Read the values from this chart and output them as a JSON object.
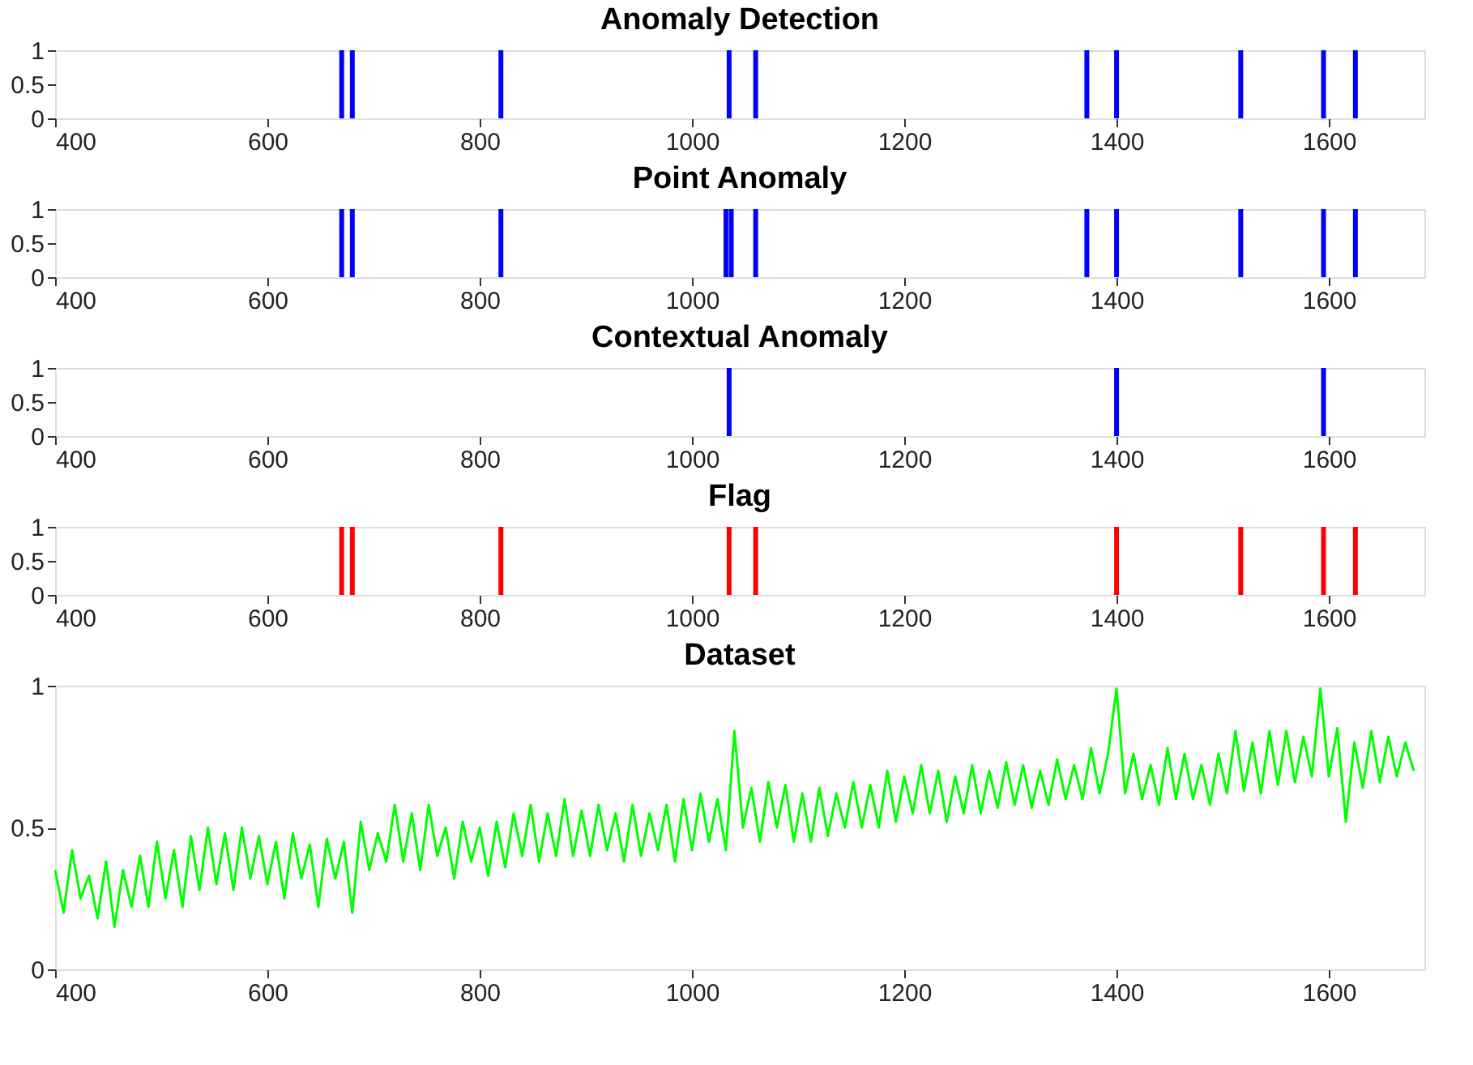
{
  "chart_data": [
    {
      "type": "bar",
      "title": "Anomaly Detection",
      "x": [
        670,
        680,
        820,
        1035,
        1060,
        1372,
        1400,
        1517,
        1595,
        1625
      ],
      "series": [
        {
          "color": "#0000ff",
          "values": [
            1,
            1,
            1,
            1,
            1,
            1,
            1,
            1,
            1,
            1
          ]
        }
      ],
      "xlim": [
        400,
        1690
      ],
      "xticks": [
        400,
        600,
        800,
        1000,
        1200,
        1400,
        1600
      ],
      "ylim": [
        0,
        1
      ],
      "yticks": [
        0,
        0.5,
        1
      ]
    },
    {
      "type": "bar",
      "title": "Point Anomaly",
      "x": [
        670,
        680,
        820,
        1032,
        1037,
        1060,
        1372,
        1400,
        1517,
        1595,
        1625
      ],
      "series": [
        {
          "color": "#0000ff",
          "values": [
            1,
            1,
            1,
            1,
            1,
            1,
            1,
            1,
            1,
            1,
            1
          ]
        }
      ],
      "xlim": [
        400,
        1690
      ],
      "xticks": [
        400,
        600,
        800,
        1000,
        1200,
        1400,
        1600
      ],
      "ylim": [
        0,
        1
      ],
      "yticks": [
        0,
        0.5,
        1
      ]
    },
    {
      "type": "bar",
      "title": "Contextual Anomaly",
      "x": [
        1035,
        1400,
        1595
      ],
      "series": [
        {
          "color": "#0000ff",
          "values": [
            1,
            1,
            1
          ]
        }
      ],
      "xlim": [
        400,
        1690
      ],
      "xticks": [
        400,
        600,
        800,
        1000,
        1200,
        1400,
        1600
      ],
      "ylim": [
        0,
        1
      ],
      "yticks": [
        0,
        0.5,
        1
      ]
    },
    {
      "type": "bar",
      "title": "Flag",
      "x": [
        670,
        680,
        820,
        1035,
        1060,
        1400,
        1517,
        1595,
        1625
      ],
      "series": [
        {
          "color": "#ff0000",
          "values": [
            1,
            1,
            1,
            1,
            1,
            1,
            1,
            1,
            1
          ]
        }
      ],
      "xlim": [
        400,
        1690
      ],
      "xticks": [
        400,
        600,
        800,
        1000,
        1200,
        1400,
        1600
      ],
      "ylim": [
        0,
        1
      ],
      "yticks": [
        0,
        0.5,
        1
      ]
    },
    {
      "type": "line",
      "title": "Dataset",
      "x": [
        400,
        408,
        416,
        424,
        432,
        440,
        448,
        456,
        464,
        472,
        480,
        488,
        496,
        504,
        512,
        520,
        528,
        536,
        544,
        552,
        560,
        568,
        576,
        584,
        592,
        600,
        608,
        616,
        624,
        632,
        640,
        648,
        656,
        664,
        672,
        680,
        688,
        696,
        704,
        712,
        720,
        728,
        736,
        744,
        752,
        760,
        768,
        776,
        784,
        792,
        800,
        808,
        816,
        824,
        832,
        840,
        848,
        856,
        864,
        872,
        880,
        888,
        896,
        904,
        912,
        920,
        928,
        936,
        944,
        952,
        960,
        968,
        976,
        984,
        992,
        1000,
        1008,
        1016,
        1024,
        1032,
        1040,
        1048,
        1056,
        1064,
        1072,
        1080,
        1088,
        1096,
        1104,
        1112,
        1120,
        1128,
        1136,
        1144,
        1152,
        1160,
        1168,
        1176,
        1184,
        1192,
        1200,
        1208,
        1216,
        1224,
        1232,
        1240,
        1248,
        1256,
        1264,
        1272,
        1280,
        1288,
        1296,
        1304,
        1312,
        1320,
        1328,
        1336,
        1344,
        1352,
        1360,
        1368,
        1376,
        1384,
        1392,
        1400,
        1408,
        1416,
        1424,
        1432,
        1440,
        1448,
        1456,
        1464,
        1472,
        1480,
        1488,
        1496,
        1504,
        1512,
        1520,
        1528,
        1536,
        1544,
        1552,
        1560,
        1568,
        1576,
        1584,
        1592,
        1600,
        1608,
        1616,
        1624,
        1632,
        1640,
        1648,
        1656,
        1664,
        1672,
        1680
      ],
      "series": [
        {
          "color": "#00ff00",
          "values": [
            0.35,
            0.2,
            0.42,
            0.25,
            0.33,
            0.18,
            0.38,
            0.15,
            0.35,
            0.22,
            0.4,
            0.22,
            0.45,
            0.25,
            0.42,
            0.22,
            0.47,
            0.28,
            0.5,
            0.3,
            0.48,
            0.28,
            0.5,
            0.32,
            0.47,
            0.3,
            0.45,
            0.25,
            0.48,
            0.32,
            0.44,
            0.22,
            0.46,
            0.32,
            0.45,
            0.2,
            0.52,
            0.35,
            0.48,
            0.38,
            0.58,
            0.38,
            0.55,
            0.35,
            0.58,
            0.4,
            0.5,
            0.32,
            0.52,
            0.38,
            0.5,
            0.33,
            0.52,
            0.36,
            0.55,
            0.4,
            0.58,
            0.38,
            0.55,
            0.4,
            0.6,
            0.4,
            0.56,
            0.4,
            0.58,
            0.42,
            0.55,
            0.38,
            0.58,
            0.4,
            0.55,
            0.42,
            0.58,
            0.38,
            0.6,
            0.42,
            0.62,
            0.45,
            0.6,
            0.42,
            0.84,
            0.5,
            0.64,
            0.45,
            0.66,
            0.5,
            0.65,
            0.45,
            0.62,
            0.45,
            0.64,
            0.47,
            0.62,
            0.5,
            0.66,
            0.5,
            0.65,
            0.5,
            0.7,
            0.52,
            0.68,
            0.55,
            0.72,
            0.55,
            0.7,
            0.52,
            0.68,
            0.55,
            0.72,
            0.55,
            0.7,
            0.57,
            0.73,
            0.58,
            0.72,
            0.57,
            0.7,
            0.58,
            0.74,
            0.6,
            0.72,
            0.6,
            0.78,
            0.62,
            0.76,
            0.99,
            0.62,
            0.76,
            0.6,
            0.72,
            0.58,
            0.78,
            0.6,
            0.76,
            0.6,
            0.72,
            0.58,
            0.76,
            0.62,
            0.84,
            0.63,
            0.8,
            0.62,
            0.84,
            0.65,
            0.84,
            0.66,
            0.82,
            0.68,
            0.99,
            0.68,
            0.85,
            0.52,
            0.8,
            0.64,
            0.84,
            0.66,
            0.82,
            0.68,
            0.8,
            0.7
          ]
        }
      ],
      "xlim": [
        400,
        1690
      ],
      "xticks": [
        400,
        600,
        800,
        1000,
        1200,
        1400,
        1600
      ],
      "ylim": [
        0,
        1
      ],
      "yticks": [
        0,
        0.5,
        1
      ]
    }
  ]
}
